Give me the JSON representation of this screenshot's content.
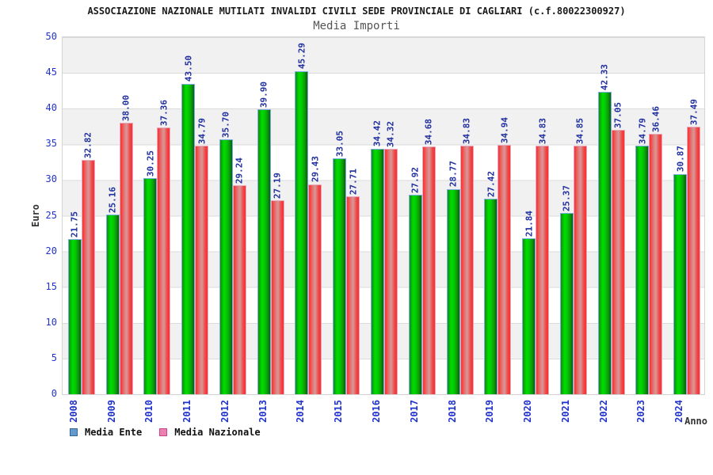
{
  "header": {
    "title": "ASSOCIAZIONE NAZIONALE MUTILATI INVALIDI CIVILI SEDE PROVINCIALE DI CAGLIARI (c.f.80022300927)",
    "subtitle": "Media Importi"
  },
  "chart_data": {
    "type": "bar",
    "title": "Media Importi",
    "xlabel": "Anno",
    "ylabel": "Euro",
    "ylim": [
      0,
      50
    ],
    "ytick_step": 5,
    "grid": "horizontal-bands",
    "legend_position": "bottom",
    "categories": [
      "2008",
      "2009",
      "2010",
      "2011",
      "2012",
      "2013",
      "2014",
      "2015",
      "2016",
      "2017",
      "2018",
      "2019",
      "2020",
      "2021",
      "2022",
      "2023",
      "2024"
    ],
    "series": [
      {
        "name": "Media Ente",
        "values": [
          21.75,
          25.16,
          30.25,
          43.5,
          35.7,
          39.9,
          45.29,
          33.05,
          34.42,
          27.92,
          28.77,
          27.42,
          21.84,
          25.37,
          42.33,
          34.79,
          30.87
        ],
        "legend_fill": "#6699cc",
        "legend_border": "#336699",
        "bar_border": "#79aede",
        "bar_gradient": [
          [
            "#128a12",
            "0%"
          ],
          [
            "#00dc00",
            "30%"
          ],
          [
            "#00cf00",
            "50%"
          ],
          [
            "#0d9e0d",
            "75%"
          ],
          [
            "#076207",
            "100%"
          ]
        ]
      },
      {
        "name": "Media Nazionale",
        "values": [
          32.82,
          38.0,
          37.36,
          34.79,
          29.24,
          27.19,
          29.43,
          27.71,
          34.32,
          34.68,
          34.83,
          34.94,
          34.83,
          34.85,
          37.05,
          36.46,
          37.49
        ],
        "legend_fill": "#ee7fb2",
        "legend_border": "#cc4488",
        "bar_border": "#e9a9bd",
        "bar_gradient": [
          [
            "#fb2f2f",
            "0%"
          ],
          [
            "#e57272",
            "30%"
          ],
          [
            "#d89898",
            "52%"
          ],
          [
            "#ee4848",
            "80%"
          ],
          [
            "#fb2f2f",
            "100%"
          ]
        ]
      }
    ],
    "colors": {
      "axis_text": "#2233cc",
      "value_label_text": "#1f2fa0",
      "band_gray": "#f1f1f1",
      "band_white": "#ffffff",
      "gridline": "#dbdbdb",
      "plot_border": "#d4d4d4"
    }
  }
}
